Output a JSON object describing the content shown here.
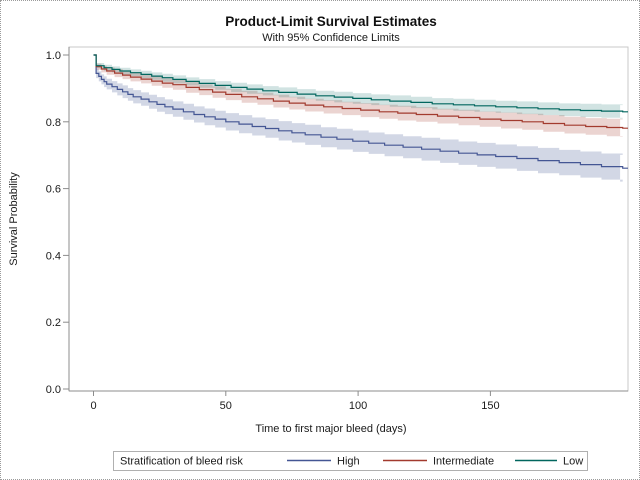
{
  "chart_data": {
    "type": "line",
    "variant": "kaplan_meier_step_with_ci_bands",
    "title": "Product-Limit Survival Estimates",
    "subtitle": "With 95% Confidence Limits",
    "xlabel": "Time to first major bleed (days)",
    "ylabel": "Survival Probability",
    "xlim": [
      -9.25,
      202
    ],
    "ylim": [
      -0.006,
      1.024
    ],
    "band_t_end": 199,
    "grid": false,
    "xticks": {
      "values": [
        0,
        50,
        100,
        150
      ],
      "labels": [
        "0",
        "50",
        "100",
        "150"
      ]
    },
    "yticks": {
      "values": [
        0.0,
        0.2,
        0.4,
        0.6,
        0.8,
        1.0
      ],
      "labels": [
        "0.0",
        "0.2",
        "0.4",
        "0.6",
        "0.8",
        "1.0"
      ]
    },
    "legend": {
      "title": "Stratification of bleed risk",
      "position": "bottom",
      "items": [
        "High",
        "Intermediate",
        "Low"
      ]
    },
    "colors": {
      "axis_line": "#8c8c8c",
      "frame": "#c9c9c9",
      "legend_border": "#b0b0b0",
      "text": "#1a1a1a"
    },
    "series": [
      {
        "name": "High",
        "color": "#445694",
        "band_opacity": 0.24,
        "t": [
          0,
          1,
          2,
          3,
          4,
          5,
          7,
          9,
          11,
          13,
          15,
          18,
          21,
          24,
          27,
          30,
          34,
          38,
          42,
          46,
          50,
          55,
          60,
          65,
          70,
          75,
          80,
          86,
          92,
          98,
          104,
          110,
          117,
          124,
          131,
          138,
          145,
          152,
          160,
          168,
          176,
          184,
          192,
          200
        ],
        "v": [
          1.0,
          0.945,
          0.936,
          0.927,
          0.92,
          0.913,
          0.905,
          0.897,
          0.89,
          0.882,
          0.875,
          0.868,
          0.86,
          0.852,
          0.845,
          0.838,
          0.83,
          0.822,
          0.815,
          0.808,
          0.8,
          0.793,
          0.786,
          0.78,
          0.773,
          0.767,
          0.761,
          0.754,
          0.748,
          0.742,
          0.736,
          0.73,
          0.724,
          0.718,
          0.712,
          0.706,
          0.701,
          0.696,
          0.69,
          0.684,
          0.678,
          0.672,
          0.666,
          0.661
        ],
        "ci": [
          0,
          0.014,
          0.015,
          0.015,
          0.016,
          0.016,
          0.017,
          0.018,
          0.019,
          0.019,
          0.02,
          0.02,
          0.021,
          0.022,
          0.022,
          0.023,
          0.024,
          0.024,
          0.025,
          0.025,
          0.026,
          0.027,
          0.027,
          0.028,
          0.029,
          0.029,
          0.03,
          0.03,
          0.031,
          0.032,
          0.032,
          0.033,
          0.033,
          0.034,
          0.035,
          0.035,
          0.036,
          0.036,
          0.037,
          0.038,
          0.038,
          0.039,
          0.039,
          0.04
        ]
      },
      {
        "name": "Intermediate",
        "color": "#A23A2E",
        "band_opacity": 0.22,
        "t": [
          0,
          1,
          3,
          5,
          8,
          11,
          14,
          18,
          22,
          26,
          30,
          35,
          40,
          45,
          50,
          56,
          62,
          68,
          74,
          80,
          87,
          94,
          101,
          108,
          115,
          122,
          130,
          138,
          146,
          154,
          162,
          170,
          178,
          186,
          194,
          200
        ],
        "v": [
          1.0,
          0.965,
          0.958,
          0.952,
          0.946,
          0.94,
          0.934,
          0.928,
          0.922,
          0.916,
          0.911,
          0.903,
          0.896,
          0.889,
          0.882,
          0.875,
          0.869,
          0.862,
          0.856,
          0.85,
          0.845,
          0.84,
          0.835,
          0.83,
          0.826,
          0.822,
          0.817,
          0.813,
          0.808,
          0.804,
          0.8,
          0.795,
          0.79,
          0.786,
          0.783,
          0.781
        ],
        "ci": [
          0,
          0.009,
          0.01,
          0.011,
          0.012,
          0.012,
          0.013,
          0.013,
          0.014,
          0.014,
          0.015,
          0.016,
          0.016,
          0.017,
          0.017,
          0.018,
          0.018,
          0.019,
          0.019,
          0.019,
          0.02,
          0.02,
          0.021,
          0.021,
          0.022,
          0.022,
          0.022,
          0.023,
          0.023,
          0.024,
          0.024,
          0.025,
          0.025,
          0.025,
          0.026,
          0.026
        ]
      },
      {
        "name": "Low",
        "color": "#01665E",
        "band_opacity": 0.18,
        "t": [
          0,
          1,
          4,
          7,
          10,
          14,
          18,
          22,
          26,
          30,
          35,
          40,
          46,
          52,
          58,
          64,
          70,
          77,
          84,
          91,
          98,
          105,
          112,
          120,
          128,
          136,
          144,
          152,
          160,
          168,
          176,
          184,
          192,
          200
        ],
        "v": [
          1.0,
          0.968,
          0.962,
          0.957,
          0.952,
          0.947,
          0.942,
          0.937,
          0.932,
          0.927,
          0.921,
          0.915,
          0.909,
          0.903,
          0.898,
          0.893,
          0.888,
          0.883,
          0.878,
          0.874,
          0.87,
          0.866,
          0.862,
          0.858,
          0.854,
          0.851,
          0.848,
          0.845,
          0.842,
          0.839,
          0.836,
          0.834,
          0.832,
          0.83
        ],
        "ci": [
          0,
          0.008,
          0.009,
          0.009,
          0.01,
          0.01,
          0.011,
          0.011,
          0.012,
          0.012,
          0.012,
          0.013,
          0.013,
          0.014,
          0.014,
          0.014,
          0.015,
          0.015,
          0.015,
          0.016,
          0.016,
          0.016,
          0.017,
          0.017,
          0.017,
          0.018,
          0.018,
          0.018,
          0.019,
          0.019,
          0.019,
          0.02,
          0.02,
          0.02
        ]
      }
    ]
  }
}
